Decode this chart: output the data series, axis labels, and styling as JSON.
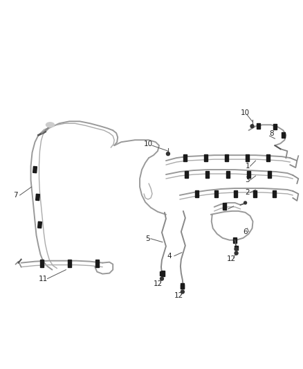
{
  "background_color": "#ffffff",
  "hose_color": "#888888",
  "hose_color2": "#aaaaaa",
  "clip_color": "#1a1a1a",
  "label_color": "#222222",
  "line_color": "#555555",
  "fig_width": 4.38,
  "fig_height": 5.33,
  "dpi": 100
}
